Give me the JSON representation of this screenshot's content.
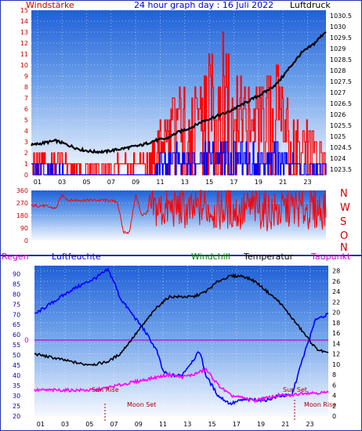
{
  "header": {
    "left_label": "Windstärke",
    "title": "24 hour graph day : 16 Juli 2022",
    "right_label": "Luftdruck"
  },
  "side_letters": [
    "N",
    "W",
    "S",
    "O",
    "N"
  ],
  "bottom_header": {
    "rain": "Regen",
    "humidity": "Luftfeuchte",
    "windchill": "Windchill",
    "temperature": "Temperatur",
    "dewpoint": "Taupunkt"
  },
  "events": {
    "sunrise": "Sun Rise",
    "sunset": "Sun Set",
    "moonset": "Moon Set",
    "moonrise": "Moon Rise"
  },
  "colors": {
    "wind": "#ff0000",
    "gust": "#0000ff",
    "pressure": "#000000",
    "direction": "#ff0000",
    "humidity": "#0000ff",
    "temperature": "#000000",
    "dewpoint": "#ff00ff",
    "rain_zero": "#cc00cc",
    "windchill_label": "#008000"
  },
  "chart_data": [
    {
      "type": "line",
      "name_shown": "Windstärke / Luftdruck",
      "x_ticks": [
        "01",
        "03",
        "05",
        "07",
        "09",
        "11",
        "13",
        "15",
        "17",
        "19",
        "21",
        "23"
      ],
      "y_left_ticks": [
        0,
        1,
        2,
        3,
        4,
        5,
        6,
        7,
        8,
        9,
        10,
        11,
        12,
        13,
        14,
        15
      ],
      "y_left_range": [
        0,
        15
      ],
      "y_right_ticks": [
        "1023.5",
        "1024",
        "1024.5",
        "1025",
        "1025.5",
        "1026",
        "1026.5",
        "1027",
        "1027.5",
        "1028",
        "1028.5",
        "1029",
        "1029.5",
        "1030",
        "1030.5"
      ],
      "y_right_range": [
        1023.25,
        1030.75
      ],
      "x_range": [
        0,
        24
      ],
      "series": [
        {
          "key": "wind_max",
          "x": [
            0,
            2,
            4,
            6,
            8,
            9,
            10,
            10.5,
            11,
            12,
            13,
            14,
            15,
            16,
            17,
            18,
            19,
            20,
            21,
            22,
            23,
            24
          ],
          "values": [
            2,
            2,
            1,
            1,
            2,
            2,
            3,
            5,
            6,
            9,
            7,
            10,
            12,
            14,
            9,
            8,
            9,
            11,
            7,
            5,
            4,
            4
          ]
        },
        {
          "key": "gust",
          "x": [
            0,
            2,
            4,
            6,
            8,
            9,
            10,
            10.5,
            11,
            12,
            13,
            14,
            15,
            16,
            17,
            18,
            19,
            20,
            21,
            22,
            23,
            24
          ],
          "values": [
            1,
            1,
            0,
            0,
            0,
            0,
            0,
            2,
            2,
            3,
            2,
            3,
            3,
            3,
            3,
            3,
            2,
            3,
            2,
            1,
            1,
            1
          ]
        },
        {
          "key": "pressure",
          "x": [
            0,
            1,
            2,
            3,
            4,
            5,
            6,
            7,
            8,
            9,
            10,
            11,
            12,
            13,
            14,
            15,
            16,
            17,
            18,
            19,
            20,
            21,
            22,
            23,
            24
          ],
          "values": [
            1024.6,
            1024.7,
            1024.8,
            1024.6,
            1024.4,
            1024.3,
            1024.3,
            1024.4,
            1024.5,
            1024.6,
            1024.8,
            1024.9,
            1025.2,
            1025.4,
            1025.7,
            1025.9,
            1026.1,
            1026.4,
            1026.7,
            1027.0,
            1027.4,
            1028.1,
            1028.8,
            1029.2,
            1029.8
          ]
        }
      ]
    },
    {
      "type": "line",
      "name_shown": "Windrichtung",
      "y_ticks": [
        0,
        90,
        180,
        270,
        360
      ],
      "y_range": [
        0,
        360
      ],
      "x_range": [
        0,
        24
      ],
      "series": [
        {
          "key": "direction",
          "x": [
            0,
            1,
            2,
            2.5,
            3,
            5,
            6,
            7,
            7.5,
            8,
            8.5,
            9,
            10,
            11,
            12,
            13,
            14,
            15,
            16,
            17,
            18,
            19,
            20,
            21,
            22,
            23,
            24
          ],
          "values": [
            250,
            250,
            230,
            330,
            290,
            290,
            290,
            280,
            60,
            60,
            330,
            180,
            230,
            220,
            240,
            200,
            250,
            210,
            230,
            200,
            240,
            220,
            200,
            240,
            230,
            220,
            230
          ]
        }
      ]
    },
    {
      "type": "line",
      "name_shown": "Luftfeuchte / Temperatur / Taupunkt",
      "x_ticks": [
        "01",
        "03",
        "05",
        "07",
        "09",
        "11",
        "13",
        "15",
        "17",
        "19",
        "21",
        "23"
      ],
      "y_left_ticks": [
        20,
        25,
        30,
        35,
        40,
        45,
        50,
        55,
        60,
        65,
        70,
        75,
        80,
        85,
        90
      ],
      "y_left_range": [
        20,
        94
      ],
      "y_right_ticks": [
        0,
        2,
        4,
        6,
        8,
        10,
        12,
        14,
        16,
        18,
        20,
        22,
        24,
        26,
        28
      ],
      "y_right_range": [
        0,
        29
      ],
      "rain_zero_label": "0",
      "x_range": [
        0,
        24
      ],
      "series": [
        {
          "key": "humidity",
          "x": [
            0,
            1,
            2,
            3,
            4,
            5,
            6,
            6.5,
            7,
            8,
            9,
            10,
            10.5,
            11,
            12,
            13,
            13.5,
            14,
            15,
            16,
            17,
            18,
            19,
            20,
            21,
            22,
            23,
            24
          ],
          "values": [
            70,
            74,
            78,
            82,
            85,
            88,
            92,
            86,
            78,
            70,
            62,
            52,
            42,
            40,
            40,
            48,
            52,
            40,
            30,
            26,
            28,
            28,
            28,
            30,
            30,
            50,
            68,
            70
          ]
        },
        {
          "key": "temperature",
          "x": [
            0,
            1,
            2,
            3,
            4,
            5,
            6,
            7,
            8,
            9,
            10,
            11,
            12,
            13,
            14,
            15,
            16,
            17,
            18,
            19,
            20,
            21,
            22,
            23,
            24
          ],
          "values": [
            12,
            11.5,
            11,
            10.5,
            10,
            10,
            10.5,
            12,
            15,
            18,
            21,
            23,
            23,
            23,
            24,
            26,
            27,
            27,
            26,
            24,
            22,
            19,
            16,
            13,
            12
          ]
        },
        {
          "key": "dewpoint",
          "x": [
            0,
            1,
            2,
            3,
            4,
            5,
            6,
            7,
            8,
            9,
            10,
            11,
            12,
            13,
            14,
            15,
            16,
            17,
            18,
            19,
            20,
            21,
            22,
            23,
            24
          ],
          "values": [
            5,
            5,
            5,
            5,
            5,
            5,
            5.5,
            6,
            6.5,
            7,
            7.5,
            8,
            7.5,
            8,
            9,
            6,
            4,
            3.5,
            3,
            3.5,
            4,
            4,
            4.5,
            4.5,
            4.5
          ]
        }
      ]
    }
  ]
}
